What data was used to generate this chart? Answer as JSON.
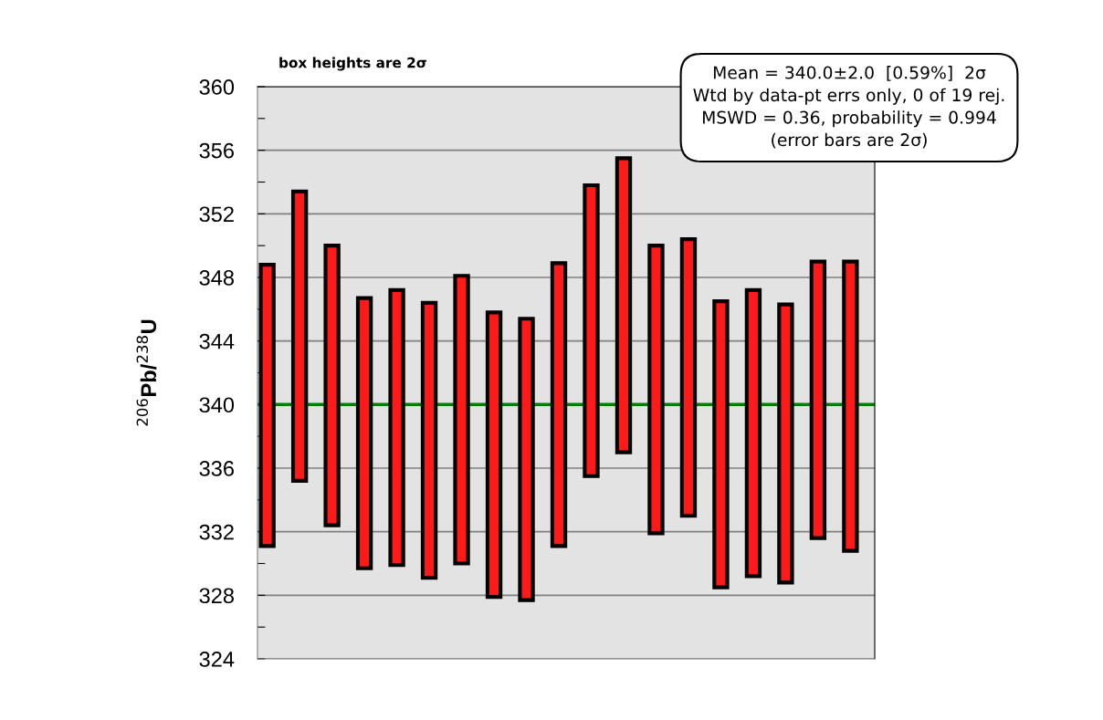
{
  "chart_data": {
    "type": "bar",
    "categories": [
      null,
      null,
      null,
      null,
      null,
      null,
      null,
      null,
      null,
      null,
      null,
      null,
      null,
      null,
      null,
      null,
      null,
      null,
      null
    ],
    "base": [
      331.1,
      335.2,
      332.4,
      329.7,
      329.9,
      329.1,
      330.0,
      327.9,
      327.7,
      331.1,
      335.5,
      337.0,
      331.9,
      333.0,
      328.5,
      329.2,
      328.8,
      331.6,
      330.8
    ],
    "values": [
      17.7,
      18.2,
      17.6,
      17.0,
      17.3,
      17.3,
      18.1,
      17.9,
      17.7,
      17.8,
      18.3,
      18.5,
      18.1,
      17.4,
      18.0,
      18.0,
      17.5,
      17.4,
      18.2
    ],
    "color": "#ff1a1a",
    "ylabel": "$^{206}$Pb/$^{238}$U",
    "ylim": [
      324,
      360
    ],
    "yticks": [
      324,
      {
        "value": 326,
        "label": null
      },
      328,
      {
        "value": 330,
        "label": null
      },
      332,
      {
        "value": 334,
        "label": null
      },
      336,
      {
        "value": 338,
        "label": null
      },
      340,
      {
        "value": 342,
        "label": null
      },
      344,
      {
        "value": 346,
        "label": null
      },
      348,
      {
        "value": 350,
        "label": null
      },
      352,
      {
        "value": 354,
        "label": null
      },
      356,
      {
        "value": 358,
        "label": null
      },
      360
    ],
    "grid": "y",
    "ref_lines": [
      {
        "axis": "y",
        "value": 340,
        "color": "#008000"
      }
    ],
    "annotations": [
      "box heights are 2σ",
      "Mean = 340.0±2.0  [0.59%]  2σ\nWtd by data-pt errs only, 0 of 19 rej.\nMSWD = 0.36, probability = 0.994\n(error bars are 2σ)"
    ]
  }
}
